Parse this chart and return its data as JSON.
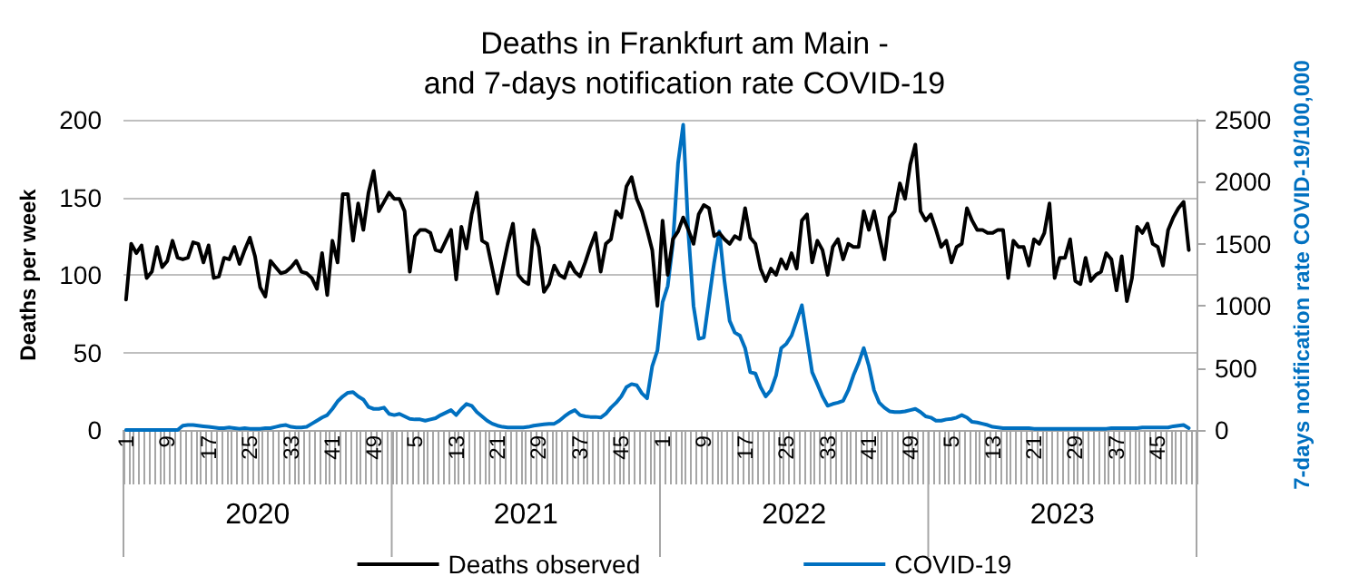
{
  "chart_data": {
    "type": "line",
    "title": "Deaths in Frankfurt am Main -\nand 7-days notification rate COVID-19",
    "ylabel": "Deaths per week",
    "y2label": "7-days notification rate COVID-19/100,000",
    "annotations": [
      "2020",
      "2021",
      "2022",
      "2023"
    ],
    "categories": [
      "1",
      null,
      null,
      null,
      null,
      null,
      null,
      null,
      "9",
      null,
      null,
      null,
      null,
      null,
      null,
      null,
      "17",
      null,
      null,
      null,
      null,
      null,
      null,
      null,
      "25",
      null,
      null,
      null,
      null,
      null,
      null,
      null,
      "33",
      null,
      null,
      null,
      null,
      null,
      null,
      null,
      "41",
      null,
      null,
      null,
      null,
      null,
      null,
      null,
      "49",
      null,
      null,
      null,
      null,
      null,
      null,
      null,
      "5",
      null,
      null,
      null,
      null,
      null,
      null,
      null,
      "13",
      null,
      null,
      null,
      null,
      null,
      null,
      null,
      "21",
      null,
      null,
      null,
      null,
      null,
      null,
      null,
      "29",
      null,
      null,
      null,
      null,
      null,
      null,
      null,
      "37",
      null,
      null,
      null,
      null,
      null,
      null,
      null,
      "45",
      null,
      null,
      null,
      null,
      null,
      null,
      null,
      "1",
      null,
      null,
      null,
      null,
      null,
      null,
      null,
      "9",
      null,
      null,
      null,
      null,
      null,
      null,
      null,
      "17",
      null,
      null,
      null,
      null,
      null,
      null,
      null,
      "25",
      null,
      null,
      null,
      null,
      null,
      null,
      null,
      "33",
      null,
      null,
      null,
      null,
      null,
      null,
      null,
      "41",
      null,
      null,
      null,
      null,
      null,
      null,
      null,
      "49",
      null,
      null,
      null,
      null,
      null,
      null,
      null,
      "5",
      null,
      null,
      null,
      null,
      null,
      null,
      null,
      "13",
      null,
      null,
      null,
      null,
      null,
      null,
      null,
      "21",
      null,
      null,
      null,
      null,
      null,
      null,
      null,
      "29",
      null,
      null,
      null,
      null,
      null,
      null,
      null,
      "37",
      null,
      null,
      null,
      null,
      null,
      null,
      null,
      "45",
      null,
      null,
      null,
      null,
      null,
      null,
      null
    ],
    "series": [
      {
        "name": "Deaths observed",
        "color": "#000000",
        "values": [
          84,
          120,
          114,
          119,
          98,
          102,
          118,
          105,
          109,
          122,
          111,
          110,
          111,
          121,
          120,
          108,
          119,
          98,
          99,
          111,
          110,
          118,
          107,
          116,
          124,
          112,
          92,
          86,
          109,
          105,
          101,
          102,
          105,
          109,
          102,
          101,
          98,
          91,
          114,
          87,
          122,
          108,
          152,
          152,
          122,
          146,
          129,
          153,
          167,
          141,
          147,
          153,
          149,
          149,
          141,
          102,
          125,
          129,
          129,
          127,
          116,
          115,
          122,
          129,
          97,
          131,
          117,
          139,
          153,
          122,
          120,
          104,
          88,
          104,
          120,
          133,
          100,
          96,
          94,
          129,
          118,
          89,
          94,
          106,
          100,
          98,
          108,
          102,
          99,
          108,
          118,
          127,
          102,
          120,
          123,
          141,
          137,
          157,
          163,
          149,
          141,
          129,
          116,
          80,
          135,
          100,
          123,
          128,
          137,
          129,
          120,
          139,
          145,
          143,
          125,
          127,
          123,
          120,
          125,
          123,
          143,
          124,
          120,
          104,
          96,
          104,
          100,
          110,
          104,
          114,
          104,
          135,
          139,
          108,
          122,
          116,
          100,
          118,
          123,
          110,
          120,
          118,
          118,
          141,
          129,
          141,
          125,
          110,
          137,
          141,
          159,
          149,
          171,
          184,
          141,
          135,
          139,
          129,
          118,
          122,
          108,
          118,
          120,
          143,
          135,
          129,
          129,
          127,
          127,
          129,
          129,
          98,
          122,
          118,
          118,
          106,
          123,
          120,
          127,
          146,
          98,
          111,
          111,
          123,
          96,
          94,
          111,
          96,
          100,
          102,
          114,
          110,
          90,
          112,
          83,
          98,
          131,
          127,
          133,
          120,
          118,
          106,
          129,
          137,
          143,
          147,
          116,
          null
        ]
      },
      {
        "name": "COVID-19",
        "color": "#0070c0",
        "axis": "y2",
        "values": [
          0,
          0,
          0,
          0,
          0,
          0,
          0,
          0,
          0,
          0,
          0,
          35,
          40,
          40,
          35,
          30,
          25,
          20,
          15,
          15,
          20,
          15,
          10,
          15,
          10,
          10,
          10,
          15,
          15,
          25,
          35,
          40,
          25,
          20,
          20,
          25,
          50,
          75,
          100,
          120,
          170,
          230,
          270,
          300,
          305,
          270,
          245,
          185,
          170,
          170,
          180,
          130,
          120,
          130,
          110,
          90,
          85,
          85,
          75,
          85,
          95,
          120,
          140,
          160,
          120,
          170,
          210,
          195,
          145,
          110,
          75,
          50,
          35,
          25,
          20,
          20,
          20,
          20,
          25,
          35,
          40,
          45,
          50,
          50,
          75,
          110,
          140,
          160,
          120,
          110,
          105,
          105,
          100,
          130,
          180,
          220,
          270,
          345,
          370,
          360,
          295,
          255,
          515,
          640,
          1030,
          1160,
          1500,
          2150,
          2460,
          1590,
          1000,
          735,
          745,
          1050,
          1350,
          1600,
          1200,
          880,
          785,
          760,
          660,
          465,
          455,
          345,
          270,
          320,
          440,
          660,
          695,
          760,
          880,
          1005,
          735,
          465,
          370,
          270,
          195,
          210,
          220,
          235,
          320,
          440,
          540,
          660,
          515,
          320,
          220,
          180,
          150,
          145,
          145,
          150,
          160,
          170,
          145,
          110,
          100,
          75,
          75,
          85,
          90,
          100,
          120,
          100,
          65,
          60,
          50,
          40,
          25,
          20,
          15,
          15,
          15,
          15,
          15,
          15,
          10,
          10,
          10,
          10,
          10,
          10,
          10,
          10,
          10,
          10,
          10,
          10,
          10,
          10,
          10,
          15,
          15,
          15,
          15,
          15,
          15,
          20,
          20,
          20,
          20,
          20,
          20,
          30,
          35,
          40,
          15,
          null
        ]
      }
    ],
    "ylim": [
      0,
      200
    ],
    "yticks": [
      0,
      50,
      100,
      150,
      200
    ],
    "y2lim": [
      0,
      2500
    ],
    "y2ticks": [
      0,
      500,
      1000,
      1500,
      2000,
      2500
    ],
    "grid": "y",
    "legend": "bottom",
    "marker": "none",
    "line_style": "solid"
  }
}
